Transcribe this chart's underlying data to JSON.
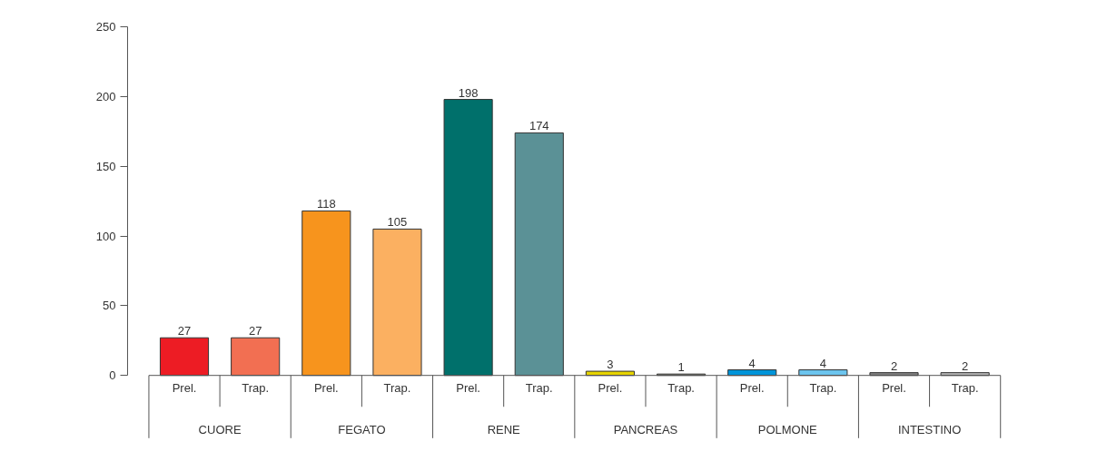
{
  "chart_data": {
    "type": "bar",
    "categories": [
      "Prel.",
      "Trap.",
      "Prel.",
      "Trap.",
      "Prel.",
      "Trap.",
      "Prel.",
      "Trap.",
      "Prel.",
      "Trap.",
      "Prel.",
      "Trap."
    ],
    "values": [
      27,
      27,
      118,
      105,
      198,
      174,
      3,
      1,
      4,
      4,
      2,
      2
    ],
    "colors": [
      "#ed1c24",
      "#f26f52",
      "#f7941d",
      "#fbb061",
      "#00706b",
      "#5b9196",
      "#e6d400",
      "#8c8c7a",
      "#0095da",
      "#6cc5ef",
      "#808080",
      "#b3b3b3"
    ],
    "annotations": [
      "CUORE",
      "FEGATO",
      "RENE",
      "PANCREAS",
      "POLMONE",
      "INTESTINO"
    ],
    "ylim": [
      0,
      250
    ],
    "yticks": [
      0,
      50,
      100,
      150,
      200,
      250
    ],
    "data_labels": true,
    "grid": false
  }
}
